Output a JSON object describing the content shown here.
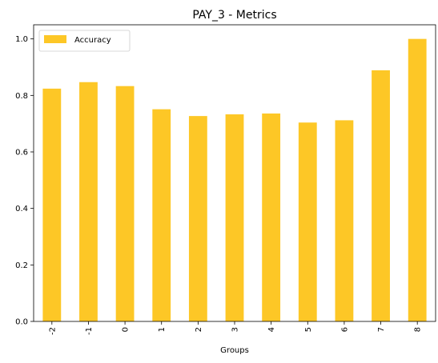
{
  "chart_data": {
    "type": "bar",
    "title": "PAY_3 - Metrics",
    "xlabel": "Groups",
    "ylabel": "",
    "categories": [
      "-2",
      "-1",
      "0",
      "1",
      "2",
      "3",
      "4",
      "5",
      "6",
      "7",
      "8"
    ],
    "series": [
      {
        "name": "Accuracy",
        "color": "#fdc726",
        "values": [
          0.824,
          0.847,
          0.833,
          0.751,
          0.727,
          0.733,
          0.736,
          0.704,
          0.712,
          0.889,
          1.0
        ]
      }
    ],
    "ylim": [
      0,
      1.05
    ],
    "yticks": [
      "0.0",
      "0.2",
      "0.4",
      "0.6",
      "0.8",
      "1.0"
    ],
    "ytick_values": [
      0.0,
      0.2,
      0.4,
      0.6,
      0.8,
      1.0
    ],
    "grid": false,
    "legend_position": "top-left",
    "xtick_rotation": "vertical"
  }
}
